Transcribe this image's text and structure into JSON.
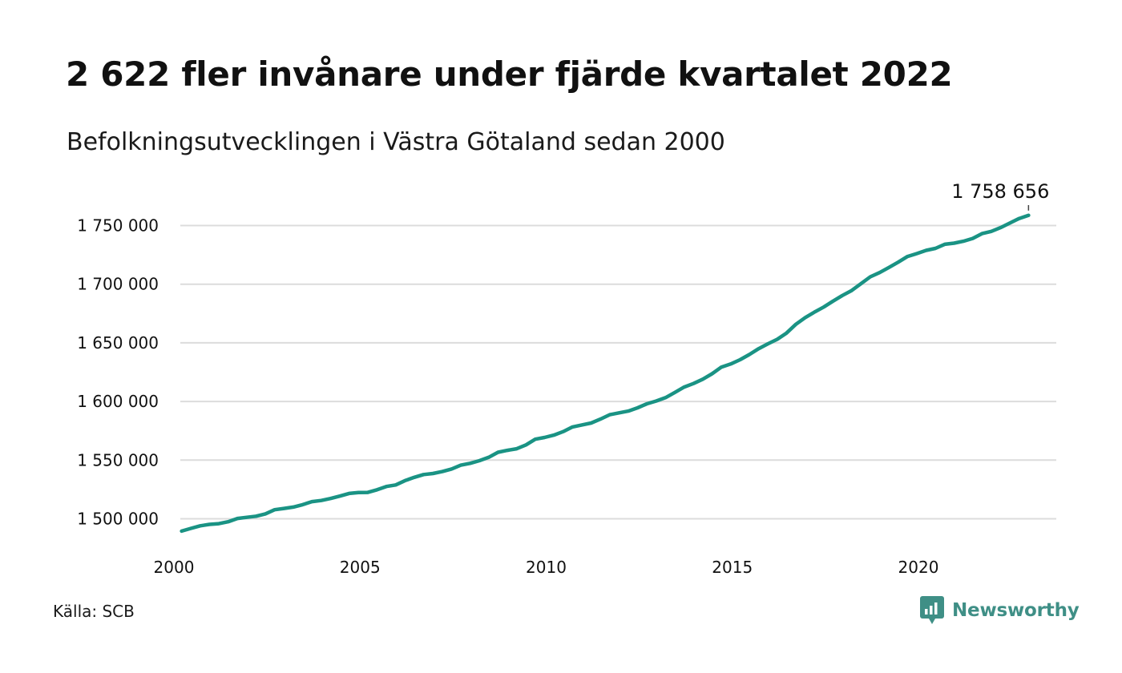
{
  "header": {
    "title": "2 622 fler invånare under fjärde kvartalet 2022",
    "subtitle": "Befolkningsutvecklingen i Västra Götaland sedan 2000"
  },
  "footer": {
    "source": "Källa: SCB",
    "brand": "Newsworthy",
    "brand_icon": "chart-speech-bubble-icon"
  },
  "colors": {
    "line": "#1a9384",
    "grid": "#dcdcdc",
    "brand": "#3f8f86"
  },
  "chart_data": {
    "type": "line",
    "title": "2 622 fler invånare under fjärde kvartalet 2022",
    "subtitle": "Befolkningsutvecklingen i Västra Götaland sedan 2000",
    "xlim": [
      2000,
      2023.75
    ],
    "ylim": [
      1490000,
      1768000
    ],
    "x_ticks": [
      2000,
      2005,
      2010,
      2015,
      2020
    ],
    "x_tick_labels": [
      "2000",
      "2005",
      "2010",
      "2015",
      "2020"
    ],
    "y_ticks": [
      1500000,
      1550000,
      1600000,
      1650000,
      1700000,
      1750000
    ],
    "y_tick_labels": [
      "1 500 000",
      "1 550 000",
      "1 600 000",
      "1 650 000",
      "1 700 000",
      "1 750 000"
    ],
    "grid": true,
    "end_label": "1 758 656",
    "series": [
      {
        "x": [
          2000.25,
          2000.5,
          2000.75,
          2001.0,
          2001.25,
          2001.5,
          2001.75,
          2002.0,
          2002.25,
          2002.5,
          2002.75,
          2003.0,
          2003.25,
          2003.5,
          2003.75,
          2004.0,
          2004.25,
          2004.5,
          2004.75,
          2005.0,
          2005.25,
          2005.5,
          2005.75,
          2006.0,
          2006.25,
          2006.5,
          2006.75,
          2007.0,
          2007.25,
          2007.5,
          2007.75,
          2008.0,
          2008.25,
          2008.5,
          2008.75,
          2009.0,
          2009.25,
          2009.5,
          2009.75,
          2010.0,
          2010.25,
          2010.5,
          2010.75,
          2011.0,
          2011.25,
          2011.5,
          2011.75,
          2012.0,
          2012.25,
          2012.5,
          2012.75,
          2013.0,
          2013.25,
          2013.5,
          2013.75,
          2014.0,
          2014.25,
          2014.5,
          2014.75,
          2015.0,
          2015.25,
          2015.5,
          2015.75,
          2016.0,
          2016.25,
          2016.5,
          2016.75,
          2017.0,
          2017.25,
          2017.5,
          2017.75,
          2018.0,
          2018.25,
          2018.5,
          2018.75,
          2019.0,
          2019.25,
          2019.5,
          2019.75,
          2020.0,
          2020.25,
          2020.5,
          2020.75,
          2021.0,
          2021.25,
          2021.5,
          2021.75,
          2022.0,
          2022.25,
          2022.5,
          2022.75,
          2023.0
        ],
        "y": [
          1489500,
          1491800,
          1494000,
          1495200,
          1495800,
          1497500,
          1500300,
          1501200,
          1502200,
          1504200,
          1507700,
          1508800,
          1510000,
          1512000,
          1514600,
          1515600,
          1517300,
          1519300,
          1521600,
          1522400,
          1522500,
          1524700,
          1527500,
          1528800,
          1532500,
          1535300,
          1537700,
          1538600,
          1540200,
          1542400,
          1545700,
          1547300,
          1549500,
          1552400,
          1556700,
          1558300,
          1559700,
          1563000,
          1567800,
          1569300,
          1571300,
          1574300,
          1578300,
          1580000,
          1581600,
          1585000,
          1588700,
          1590300,
          1591800,
          1594600,
          1598000,
          1600400,
          1603300,
          1607700,
          1612300,
          1615300,
          1619000,
          1623600,
          1629300,
          1632000,
          1635600,
          1640000,
          1645000,
          1649200,
          1653000,
          1658300,
          1665800,
          1671500,
          1676200,
          1680500,
          1685600,
          1690400,
          1694600,
          1700400,
          1706300,
          1709900,
          1714300,
          1718800,
          1723600,
          1726100,
          1728800,
          1730500,
          1734000,
          1735000,
          1736600,
          1739000,
          1743100,
          1745000,
          1748200,
          1752100,
          1756000,
          1758656
        ]
      }
    ]
  }
}
